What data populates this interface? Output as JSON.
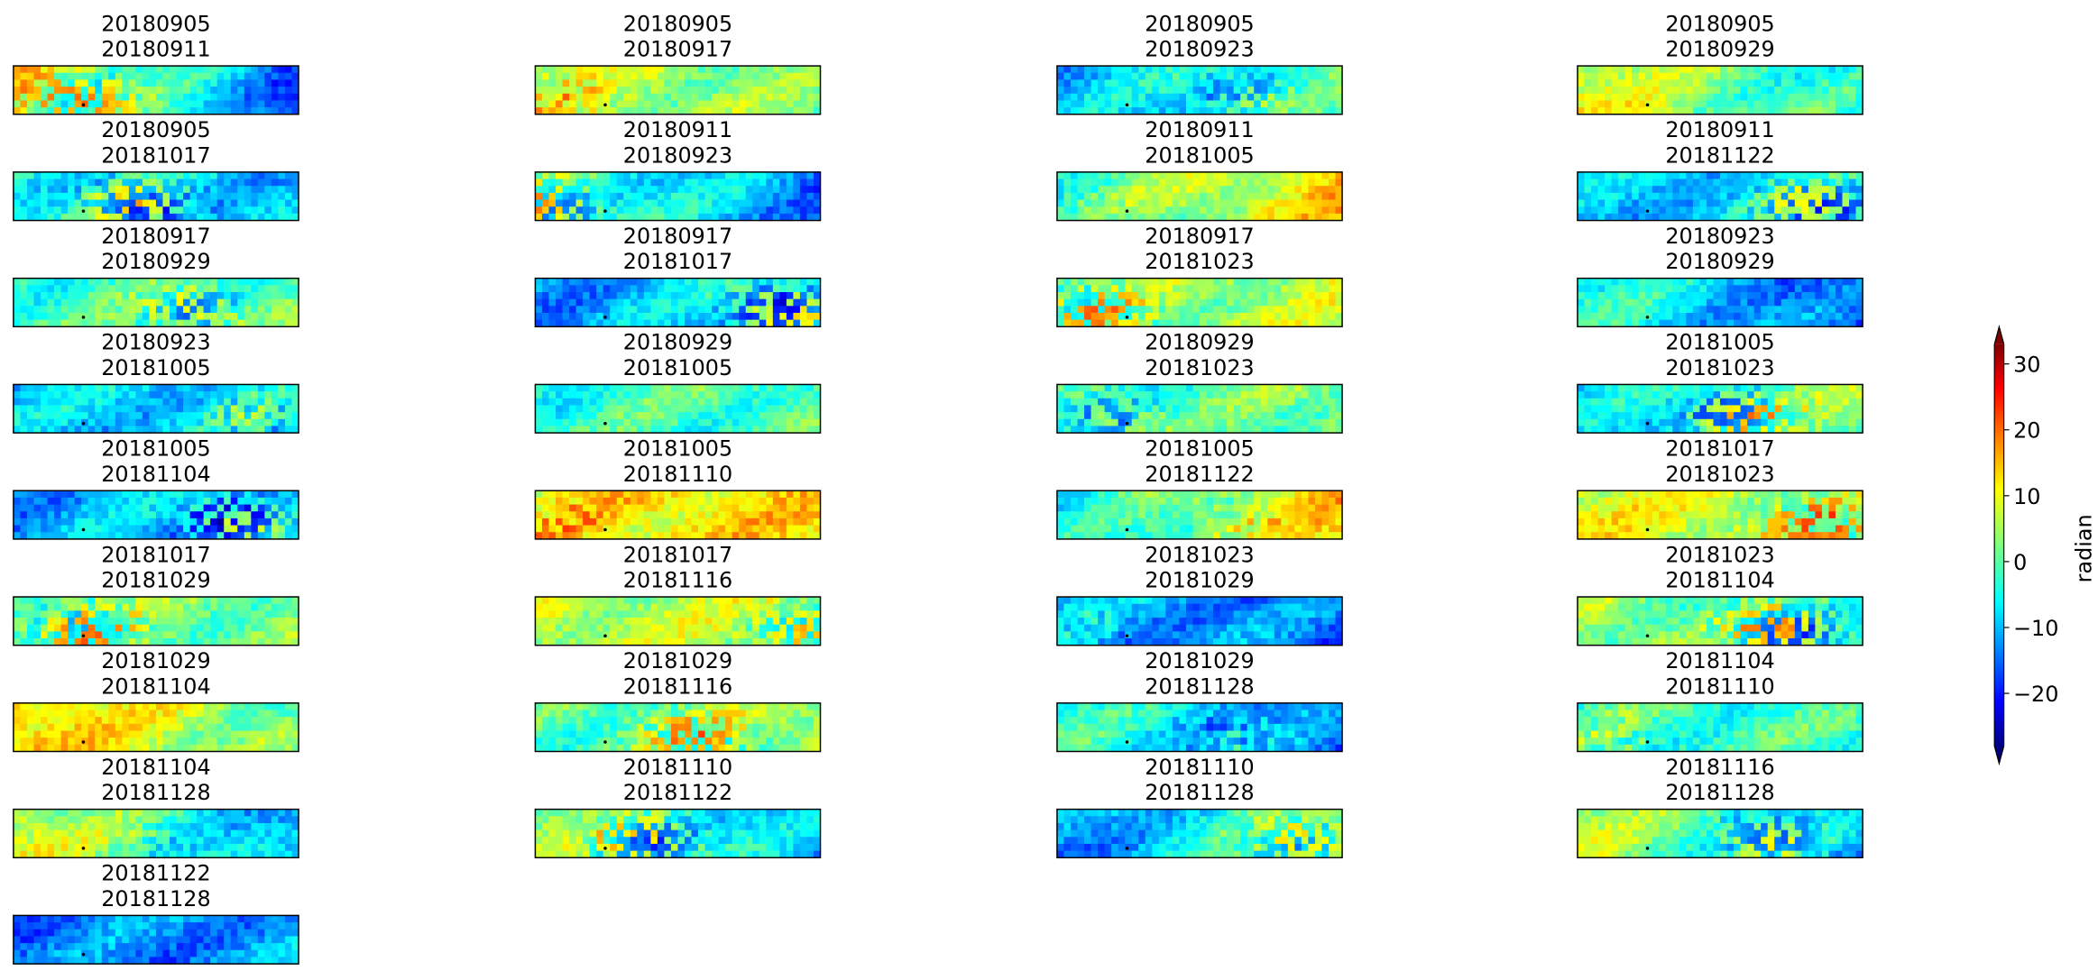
{
  "chart_data": {
    "type": "image_grid",
    "panels": [
      [
        "20180905",
        "20180911"
      ],
      [
        "20180905",
        "20180917"
      ],
      [
        "20180905",
        "20180923"
      ],
      [
        "20180905",
        "20180929"
      ],
      [
        "20180905",
        "20181017"
      ],
      [
        "20180911",
        "20180923"
      ],
      [
        "20180911",
        "20181005"
      ],
      [
        "20180911",
        "20181122"
      ],
      [
        "20180917",
        "20180929"
      ],
      [
        "20180917",
        "20181017"
      ],
      [
        "20180917",
        "20181023"
      ],
      [
        "20180923",
        "20180929"
      ],
      [
        "20180923",
        "20181005"
      ],
      [
        "20180929",
        "20181005"
      ],
      [
        "20180929",
        "20181023"
      ],
      [
        "20181005",
        "20181023"
      ],
      [
        "20181005",
        "20181104"
      ],
      [
        "20181005",
        "20181110"
      ],
      [
        "20181005",
        "20181122"
      ],
      [
        "20181017",
        "20181023"
      ],
      [
        "20181017",
        "20181029"
      ],
      [
        "20181017",
        "20181116"
      ],
      [
        "20181023",
        "20181029"
      ],
      [
        "20181023",
        "20181104"
      ],
      [
        "20181029",
        "20181104"
      ],
      [
        "20181029",
        "20181116"
      ],
      [
        "20181029",
        "20181128"
      ],
      [
        "20181104",
        "20181110"
      ],
      [
        "20181104",
        "20181128"
      ],
      [
        "20181110",
        "20181122"
      ],
      [
        "20181110",
        "20181128"
      ],
      [
        "20181116",
        "20181128"
      ],
      [
        "20181122",
        "20181128"
      ]
    ],
    "colorbar": {
      "label": "radian",
      "ylim": [
        -28,
        33
      ],
      "yticks": [
        {
          "value": -20,
          "label": "−20"
        },
        {
          "value": -10,
          "label": "−10"
        },
        0,
        10,
        20,
        30
      ]
    }
  }
}
